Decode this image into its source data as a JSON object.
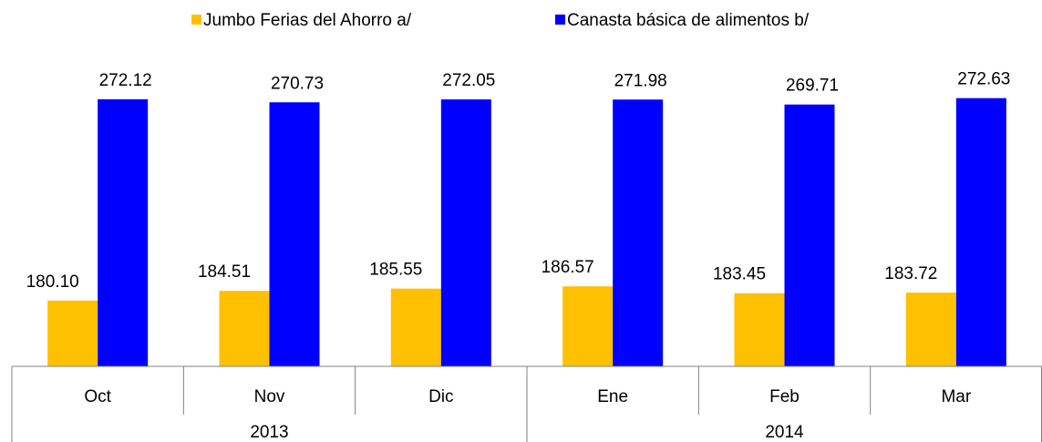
{
  "chart_data": {
    "type": "bar",
    "categories": [
      "Oct",
      "Nov",
      "Dic",
      "Ene",
      "Feb",
      "Mar"
    ],
    "x_groups": [
      {
        "label": "2013",
        "count": 3
      },
      {
        "label": "2014",
        "count": 3
      }
    ],
    "series": [
      {
        "name": "Jumbo Ferias del Ahorro a/",
        "color": "#FFC000",
        "values": [
          180.1,
          184.51,
          185.55,
          186.57,
          183.45,
          183.72
        ],
        "value_labels": [
          "180.10",
          "184.51",
          "185.55",
          "186.57",
          "183.45",
          "183.72"
        ]
      },
      {
        "name": "Canasta básica de alimentos b/",
        "color": "#0000FF",
        "values": [
          272.12,
          270.73,
          272.05,
          271.98,
          269.71,
          272.63
        ],
        "value_labels": [
          "272.12",
          "270.73",
          "272.05",
          "271.98",
          "269.71",
          "272.63"
        ]
      }
    ],
    "ylim": [
      150,
      290
    ]
  }
}
